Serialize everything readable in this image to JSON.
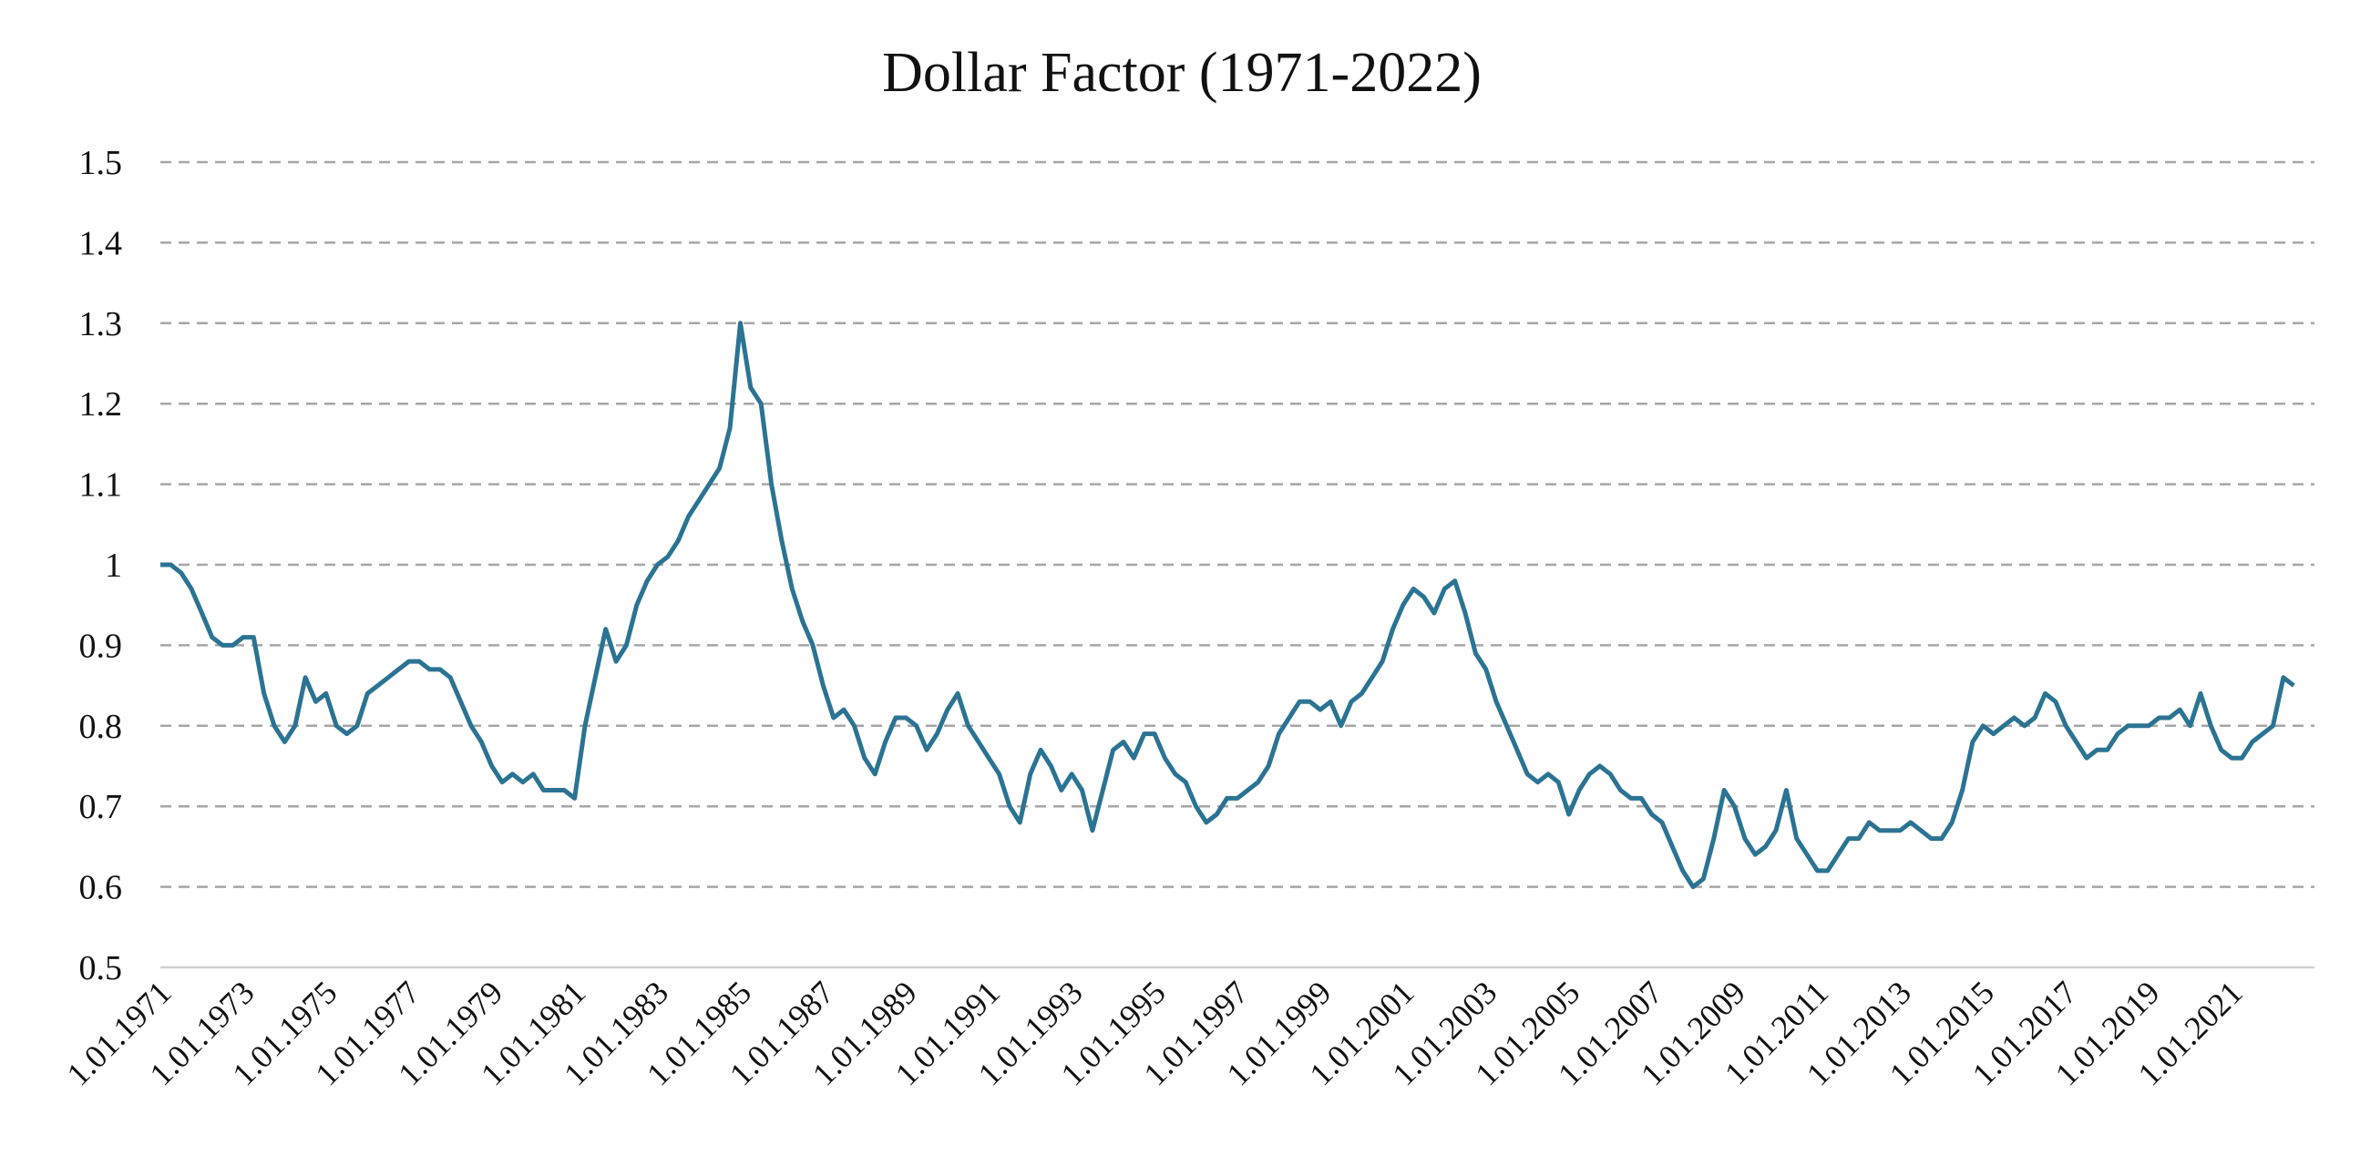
{
  "chart_data": {
    "type": "line",
    "title": "Dollar Factor (1971-2022)",
    "x": [
      "1.01.1971",
      "1.04.1971",
      "1.07.1971",
      "1.10.1971",
      "1.01.1972",
      "1.04.1972",
      "1.07.1972",
      "1.10.1972",
      "1.01.1973",
      "1.04.1973",
      "1.07.1973",
      "1.10.1973",
      "1.01.1974",
      "1.04.1974",
      "1.07.1974",
      "1.10.1974",
      "1.01.1975",
      "1.04.1975",
      "1.07.1975",
      "1.10.1975",
      "1.01.1976",
      "1.04.1976",
      "1.07.1976",
      "1.10.1976",
      "1.01.1977",
      "1.04.1977",
      "1.07.1977",
      "1.10.1977",
      "1.01.1978",
      "1.04.1978",
      "1.07.1978",
      "1.10.1978",
      "1.01.1979",
      "1.04.1979",
      "1.07.1979",
      "1.10.1979",
      "1.01.1980",
      "1.04.1980",
      "1.07.1980",
      "1.10.1980",
      "1.01.1981",
      "1.04.1981",
      "1.07.1981",
      "1.10.1981",
      "1.01.1982",
      "1.04.1982",
      "1.07.1982",
      "1.10.1982",
      "1.01.1983",
      "1.04.1983",
      "1.07.1983",
      "1.10.1983",
      "1.01.1984",
      "1.04.1984",
      "1.07.1984",
      "1.10.1984",
      "1.01.1985",
      "1.04.1985",
      "1.07.1985",
      "1.10.1985",
      "1.01.1986",
      "1.04.1986",
      "1.07.1986",
      "1.10.1986",
      "1.01.1987",
      "1.04.1987",
      "1.07.1987",
      "1.10.1987",
      "1.01.1988",
      "1.04.1988",
      "1.07.1988",
      "1.10.1988",
      "1.01.1989",
      "1.04.1989",
      "1.07.1989",
      "1.10.1989",
      "1.01.1990",
      "1.04.1990",
      "1.07.1990",
      "1.10.1990",
      "1.01.1991",
      "1.04.1991",
      "1.07.1991",
      "1.10.1991",
      "1.01.1992",
      "1.04.1992",
      "1.07.1992",
      "1.10.1992",
      "1.01.1993",
      "1.04.1993",
      "1.07.1993",
      "1.10.1993",
      "1.01.1994",
      "1.04.1994",
      "1.07.1994",
      "1.10.1994",
      "1.01.1995",
      "1.04.1995",
      "1.07.1995",
      "1.10.1995",
      "1.01.1996",
      "1.04.1996",
      "1.07.1996",
      "1.10.1996",
      "1.01.1997",
      "1.04.1997",
      "1.07.1997",
      "1.10.1997",
      "1.01.1998",
      "1.04.1998",
      "1.07.1998",
      "1.10.1998",
      "1.01.1999",
      "1.04.1999",
      "1.07.1999",
      "1.10.1999",
      "1.01.2000",
      "1.04.2000",
      "1.07.2000",
      "1.10.2000",
      "1.01.2001",
      "1.04.2001",
      "1.07.2001",
      "1.10.2001",
      "1.01.2002",
      "1.04.2002",
      "1.07.2002",
      "1.10.2002",
      "1.01.2003",
      "1.04.2003",
      "1.07.2003",
      "1.10.2003",
      "1.01.2004",
      "1.04.2004",
      "1.07.2004",
      "1.10.2004",
      "1.01.2005",
      "1.04.2005",
      "1.07.2005",
      "1.10.2005",
      "1.01.2006",
      "1.04.2006",
      "1.07.2006",
      "1.10.2006",
      "1.01.2007",
      "1.04.2007",
      "1.07.2007",
      "1.10.2007",
      "1.01.2008",
      "1.04.2008",
      "1.07.2008",
      "1.10.2008",
      "1.01.2009",
      "1.04.2009",
      "1.07.2009",
      "1.10.2009",
      "1.01.2010",
      "1.04.2010",
      "1.07.2010",
      "1.10.2010",
      "1.01.2011",
      "1.04.2011",
      "1.07.2011",
      "1.10.2011",
      "1.01.2012",
      "1.04.2012",
      "1.07.2012",
      "1.10.2012",
      "1.01.2013",
      "1.04.2013",
      "1.07.2013",
      "1.10.2013",
      "1.01.2014",
      "1.04.2014",
      "1.07.2014",
      "1.10.2014",
      "1.01.2015",
      "1.04.2015",
      "1.07.2015",
      "1.10.2015",
      "1.01.2016",
      "1.04.2016",
      "1.07.2016",
      "1.10.2016",
      "1.01.2017",
      "1.04.2017",
      "1.07.2017",
      "1.10.2017",
      "1.01.2018",
      "1.04.2018",
      "1.07.2018",
      "1.10.2018",
      "1.01.2019",
      "1.04.2019",
      "1.07.2019",
      "1.10.2019",
      "1.01.2020",
      "1.04.2020",
      "1.07.2020",
      "1.10.2020",
      "1.01.2021",
      "1.04.2021",
      "1.07.2021",
      "1.10.2021",
      "1.01.2022",
      "1.04.2022",
      "1.07.2022"
    ],
    "series": [
      {
        "color": "#2b7393",
        "values": [
          1.0,
          1.0,
          0.99,
          0.97,
          0.94,
          0.91,
          0.9,
          0.9,
          0.91,
          0.91,
          0.84,
          0.8,
          0.78,
          0.8,
          0.86,
          0.83,
          0.84,
          0.8,
          0.79,
          0.8,
          0.84,
          0.85,
          0.86,
          0.87,
          0.88,
          0.88,
          0.87,
          0.87,
          0.86,
          0.83,
          0.8,
          0.78,
          0.75,
          0.73,
          0.74,
          0.73,
          0.74,
          0.72,
          0.72,
          0.72,
          0.71,
          0.8,
          0.86,
          0.92,
          0.88,
          0.9,
          0.95,
          0.98,
          1.0,
          1.01,
          1.03,
          1.06,
          1.08,
          1.1,
          1.12,
          1.17,
          1.3,
          1.22,
          1.2,
          1.1,
          1.03,
          0.97,
          0.93,
          0.9,
          0.85,
          0.81,
          0.82,
          0.8,
          0.76,
          0.74,
          0.78,
          0.81,
          0.81,
          0.8,
          0.77,
          0.79,
          0.82,
          0.84,
          0.8,
          0.78,
          0.76,
          0.74,
          0.7,
          0.68,
          0.74,
          0.77,
          0.75,
          0.72,
          0.74,
          0.72,
          0.67,
          0.72,
          0.77,
          0.78,
          0.76,
          0.79,
          0.79,
          0.76,
          0.74,
          0.73,
          0.7,
          0.68,
          0.69,
          0.71,
          0.71,
          0.72,
          0.73,
          0.75,
          0.79,
          0.81,
          0.83,
          0.83,
          0.82,
          0.83,
          0.8,
          0.83,
          0.84,
          0.86,
          0.88,
          0.92,
          0.95,
          0.97,
          0.96,
          0.94,
          0.97,
          0.98,
          0.94,
          0.89,
          0.87,
          0.83,
          0.8,
          0.77,
          0.74,
          0.73,
          0.74,
          0.73,
          0.69,
          0.72,
          0.74,
          0.75,
          0.74,
          0.72,
          0.71,
          0.71,
          0.69,
          0.68,
          0.65,
          0.62,
          0.6,
          0.61,
          0.66,
          0.72,
          0.7,
          0.66,
          0.64,
          0.65,
          0.67,
          0.72,
          0.66,
          0.64,
          0.62,
          0.62,
          0.64,
          0.66,
          0.66,
          0.68,
          0.67,
          0.67,
          0.67,
          0.68,
          0.67,
          0.66,
          0.66,
          0.68,
          0.72,
          0.78,
          0.8,
          0.79,
          0.8,
          0.81,
          0.8,
          0.81,
          0.84,
          0.83,
          0.8,
          0.78,
          0.76,
          0.77,
          0.77,
          0.79,
          0.8,
          0.8,
          0.8,
          0.81,
          0.81,
          0.82,
          0.8,
          0.84,
          0.8,
          0.77,
          0.76,
          0.76,
          0.78,
          0.79,
          0.8,
          0.86,
          0.85
        ]
      }
    ],
    "xlim": [
      "1.01.1971",
      "1.01.2023"
    ],
    "xticks": [
      "1.01.1971",
      "1.01.1973",
      "1.01.1975",
      "1.01.1977",
      "1.01.1979",
      "1.01.1981",
      "1.01.1983",
      "1.01.1985",
      "1.01.1987",
      "1.01.1989",
      "1.01.1991",
      "1.01.1993",
      "1.01.1995",
      "1.01.1997",
      "1.01.1999",
      "1.01.2001",
      "1.01.2003",
      "1.01.2005",
      "1.01.2007",
      "1.01.2009",
      "1.01.2011",
      "1.01.2013",
      "1.01.2015",
      "1.01.2017",
      "1.01.2019",
      "1.01.2021"
    ],
    "ylim": [
      0.5,
      1.5
    ],
    "yticks": [
      0.5,
      0.6,
      0.7,
      0.8,
      0.9,
      1,
      1.1,
      1.2,
      1.3,
      1.4,
      1.5
    ],
    "grid": true
  }
}
